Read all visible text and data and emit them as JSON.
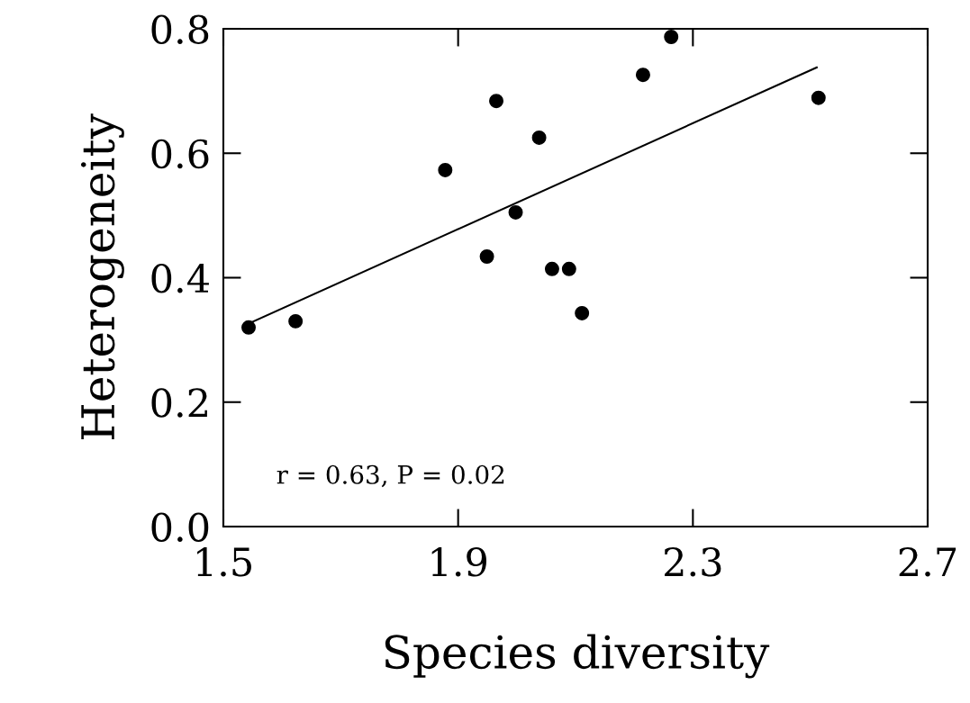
{
  "chart_data": {
    "type": "scatter",
    "xlabel": "Species diversity",
    "ylabel": "Heterogeneity",
    "xlim": [
      1.5,
      2.7
    ],
    "ylim": [
      0.0,
      0.8
    ],
    "xticks": [
      {
        "value": 1.5,
        "label": "1.5"
      },
      {
        "value": 1.9,
        "label": "1.9"
      },
      {
        "value": 2.3,
        "label": "2.3"
      },
      {
        "value": 2.7,
        "label": "2.7"
      }
    ],
    "yticks": [
      {
        "value": 0.0,
        "label": "0.0"
      },
      {
        "value": 0.2,
        "label": "0.2"
      },
      {
        "value": 0.4,
        "label": "0.4"
      },
      {
        "value": 0.6,
        "label": "0.6"
      },
      {
        "value": 0.8,
        "label": "0.8"
      }
    ],
    "grid": false,
    "series": [
      {
        "marker": "circle",
        "color": "#000000",
        "x": [
          1.543,
          1.623,
          1.878,
          1.949,
          1.965,
          1.998,
          2.038,
          2.06,
          2.089,
          2.111,
          2.215,
          2.263,
          2.514
        ],
        "values": [
          0.32,
          0.33,
          0.573,
          0.434,
          0.684,
          0.505,
          0.625,
          0.414,
          0.414,
          0.343,
          0.726,
          0.787,
          0.689
        ]
      },
      {
        "type": "line",
        "color": "#000000",
        "x": [
          1.545,
          2.511
        ],
        "values": [
          0.327,
          0.738
        ]
      }
    ],
    "annotations": [
      "r = 0.63, P = 0.02"
    ]
  }
}
